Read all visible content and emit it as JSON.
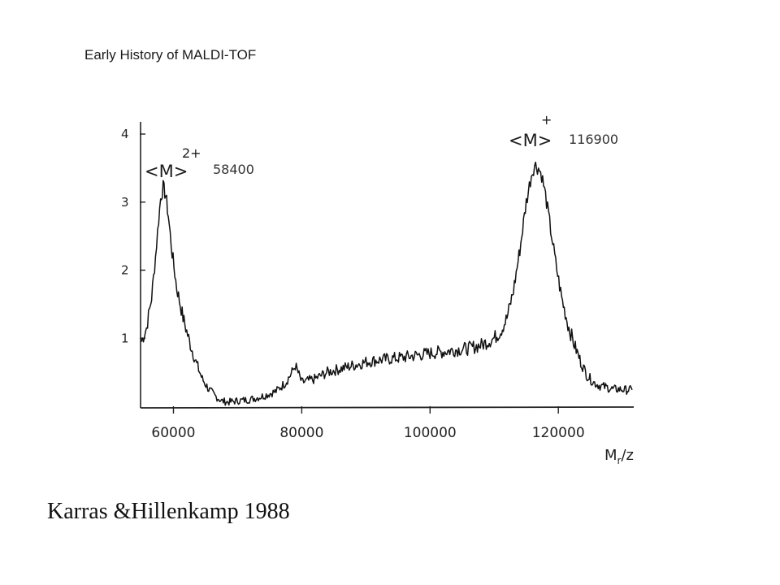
{
  "slide": {
    "title": "Early History of MALDI-TOF",
    "citation": "Karras &Hillenkamp 1988"
  },
  "chart_data": {
    "type": "line",
    "title": "",
    "xlabel": "M",
    "xlabel_sub": "r",
    "xlabel_suffix": "/z",
    "ylabel": "",
    "xlim": [
      55000,
      131500
    ],
    "ylim": [
      0,
      4
    ],
    "x_ticks": [
      60000,
      80000,
      100000,
      120000
    ],
    "x_tick_labels": [
      "60000",
      "80000",
      "100000",
      "120000"
    ],
    "y_ticks": [
      1,
      2,
      3,
      4
    ],
    "y_tick_labels": [
      "1",
      "2",
      "3",
      "4"
    ],
    "grid": false,
    "line_color": "#111111",
    "annotations": [
      {
        "label": "<M>",
        "superscript": "2+",
        "mass": "58400",
        "x": 58400,
        "y": 3.25
      },
      {
        "label": "<M>",
        "superscript": "+",
        "mass": "116900",
        "x": 116900,
        "y": 3.6
      }
    ],
    "series": [
      {
        "x": [
          55000,
          55800,
          56600,
          57200,
          57700,
          58000,
          58400,
          58800,
          59200,
          59800,
          60500,
          61500,
          62500,
          63500,
          64500,
          65500,
          66500,
          67500,
          68500,
          70000,
          72000,
          74000,
          76000,
          77500,
          78500,
          79000,
          80000,
          82000,
          84000,
          86000,
          88000,
          90000,
          92000,
          94000,
          96000,
          98000,
          100000,
          102000,
          104000,
          106000,
          108000,
          110000,
          111000,
          112000,
          113000,
          114000,
          115000,
          115800,
          116300,
          116900,
          117400,
          118000,
          118800,
          119600,
          120500,
          121500,
          122500,
          123500,
          124500,
          125500,
          126500,
          127500,
          128500,
          129500,
          130500,
          131500
        ],
        "y": [
          0.95,
          1.15,
          1.6,
          2.2,
          2.75,
          3.05,
          3.22,
          3.1,
          2.8,
          2.25,
          1.75,
          1.3,
          0.95,
          0.65,
          0.4,
          0.25,
          0.15,
          0.08,
          0.06,
          0.08,
          0.1,
          0.15,
          0.22,
          0.35,
          0.5,
          0.6,
          0.35,
          0.4,
          0.5,
          0.55,
          0.6,
          0.65,
          0.68,
          0.7,
          0.72,
          0.75,
          0.78,
          0.8,
          0.83,
          0.85,
          0.9,
          1.0,
          1.1,
          1.3,
          1.7,
          2.3,
          3.0,
          3.4,
          3.55,
          3.5,
          3.4,
          3.1,
          2.6,
          2.1,
          1.6,
          1.2,
          0.9,
          0.65,
          0.45,
          0.35,
          0.3,
          0.28,
          0.25,
          0.25,
          0.24,
          0.24
        ]
      }
    ]
  }
}
